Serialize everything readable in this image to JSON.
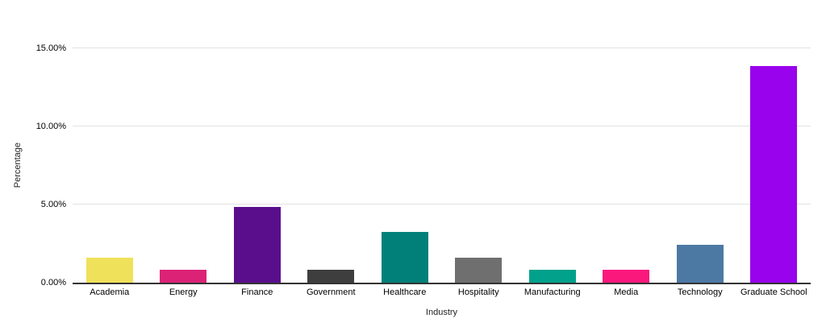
{
  "chart_data": {
    "type": "bar",
    "title": "",
    "xlabel": "Industry",
    "ylabel": "Percentage",
    "categories": [
      "Academia",
      "Energy",
      "Finance",
      "Government",
      "Healthcare",
      "Hospitality",
      "Manufacturing",
      "Media",
      "Technology",
      "Graduate School"
    ],
    "values": [
      1.6,
      0.8,
      4.85,
      0.8,
      3.25,
      1.6,
      0.8,
      0.8,
      2.4,
      13.85
    ],
    "bar_colors": [
      "#F0E15A",
      "#DB2277",
      "#5A0E8C",
      "#3E3E3E",
      "#018079",
      "#6F6F6F",
      "#01A18B",
      "#FA187D",
      "#4C79A4",
      "#9802EC"
    ],
    "ylim": [
      0,
      15
    ],
    "yticks": [
      0,
      5,
      10,
      15
    ],
    "ytick_labels": [
      "0.00%",
      "5.00%",
      "10.00%",
      "15.00%"
    ],
    "grid": true,
    "legend": false,
    "legend_position": "none"
  },
  "colors": {
    "background": "#ffffff",
    "gridline": "#e2e2e2",
    "axis_line": "#333333",
    "tick_text": "#000000",
    "axis_title_text": "#222222"
  }
}
